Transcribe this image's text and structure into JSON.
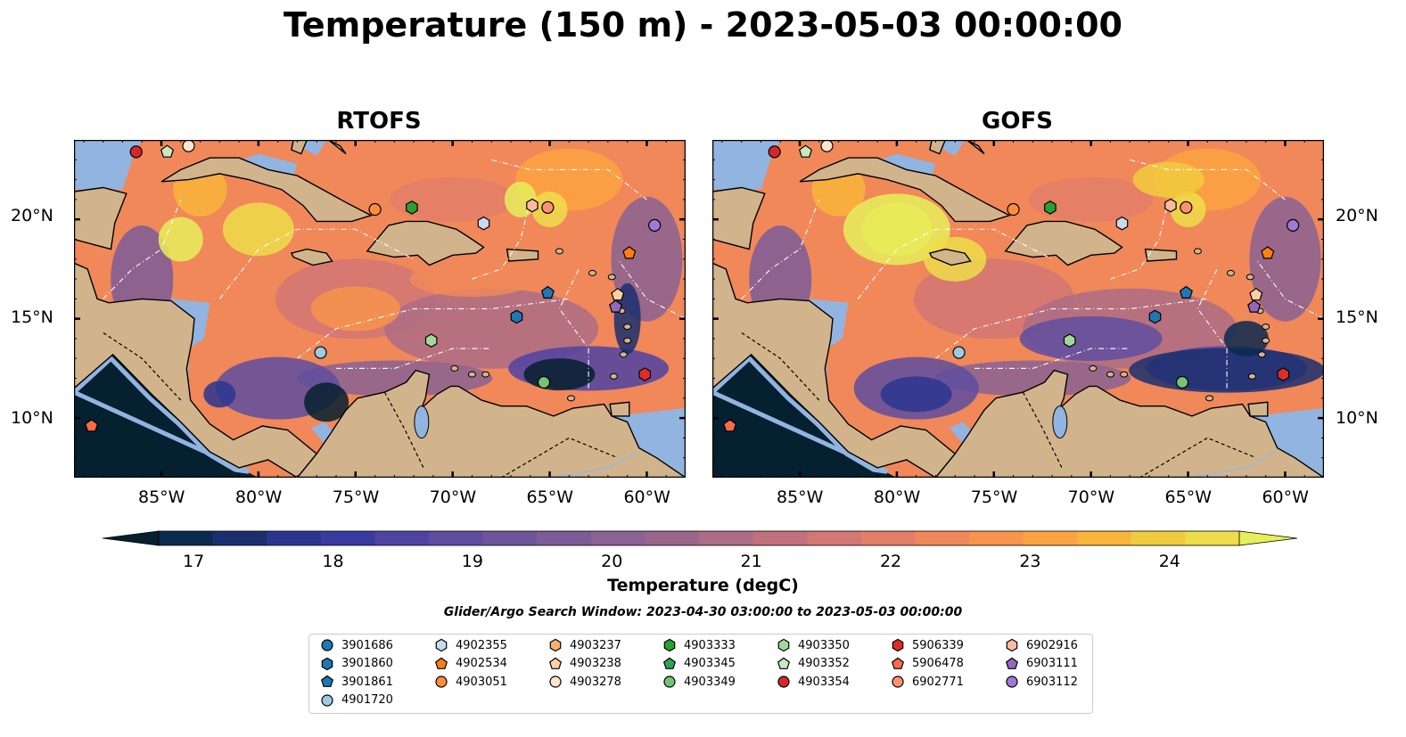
{
  "title": "Temperature (150 m) - 2023-05-03 00:00:00",
  "panels": [
    {
      "title": "RTOFS",
      "id": "rtofs"
    },
    {
      "title": "GOFS",
      "id": "gofs"
    }
  ],
  "lon_ticks": [
    "85°W",
    "80°W",
    "75°W",
    "70°W",
    "65°W",
    "60°W"
  ],
  "lat_ticks": [
    "20°N",
    "15°N",
    "10°N"
  ],
  "map_extent": {
    "lon": [
      -89.5,
      -58
    ],
    "lat": [
      7,
      24
    ]
  },
  "colorbar": {
    "label": "Temperature (degC)",
    "ticks": [
      "17",
      "18",
      "19",
      "20",
      "21",
      "22",
      "23",
      "24"
    ],
    "range": [
      16.75,
      24.5
    ],
    "extend": "both",
    "colors": [
      "#05202e",
      "#0b2a4f",
      "#1b2f6e",
      "#2b3590",
      "#3b3aa0",
      "#4f43a2",
      "#5f4d9f",
      "#6e559b",
      "#7c5c98",
      "#8a6293",
      "#9a668c",
      "#ad6c85",
      "#c0717d",
      "#d27774",
      "#e37e69",
      "#f0885a",
      "#f8944b",
      "#fba340",
      "#f9b53a",
      "#f1cb3e",
      "#eedd4a",
      "#e6ef5a"
    ]
  },
  "search_window": "Glider/Argo Search Window: 2023-04-30 03:00:00 to 2023-05-03 00:00:00",
  "colors": {
    "land": "#d2b48c",
    "shelf": "#92b4e0",
    "deep_pacific": "#05202e"
  },
  "legend": [
    {
      "id": "3901686",
      "color": "#1f77b4",
      "shape": "circle"
    },
    {
      "id": "3901860",
      "color": "#1f77b4",
      "shape": "hexagon"
    },
    {
      "id": "3901861",
      "color": "#1f77b4",
      "shape": "pentagon"
    },
    {
      "id": "4901720",
      "color": "#9ecae1",
      "shape": "circle"
    },
    {
      "id": "4902355",
      "color": "#c6dbef",
      "shape": "hexagon"
    },
    {
      "id": "4902534",
      "color": "#ff7f0e",
      "shape": "pentagon"
    },
    {
      "id": "4903051",
      "color": "#fd8d3c",
      "shape": "circle"
    },
    {
      "id": "4903237",
      "color": "#fdae6b",
      "shape": "hexagon"
    },
    {
      "id": "4903238",
      "color": "#fdd0a2",
      "shape": "pentagon"
    },
    {
      "id": "4903278",
      "color": "#fee6ce",
      "shape": "circle"
    },
    {
      "id": "4903333",
      "color": "#2ca02c",
      "shape": "hexagon"
    },
    {
      "id": "4903345",
      "color": "#31a354",
      "shape": "pentagon"
    },
    {
      "id": "4903349",
      "color": "#74c476",
      "shape": "circle"
    },
    {
      "id": "4903350",
      "color": "#a1d99b",
      "shape": "hexagon"
    },
    {
      "id": "4903352",
      "color": "#c7e9c0",
      "shape": "pentagon"
    },
    {
      "id": "4903354",
      "color": "#d62728",
      "shape": "circle"
    },
    {
      "id": "5906339",
      "color": "#de2d26",
      "shape": "hexagon"
    },
    {
      "id": "5906478",
      "color": "#fb6a4a",
      "shape": "pentagon"
    },
    {
      "id": "6902771",
      "color": "#fc9272",
      "shape": "circle"
    },
    {
      "id": "6902916",
      "color": "#fcbba1",
      "shape": "hexagon"
    },
    {
      "id": "6903111",
      "color": "#9467bd",
      "shape": "pentagon"
    },
    {
      "id": "6903112",
      "color": "#9e7ad6",
      "shape": "circle"
    }
  ],
  "floats": [
    {
      "id": "5906478",
      "lon": -88.6,
      "lat": 9.6,
      "color": "#fb6a4a",
      "shape": "pentagon"
    },
    {
      "id": "4903354",
      "lon": -86.3,
      "lat": 23.4,
      "color": "#d62728",
      "shape": "circle"
    },
    {
      "id": "4903352",
      "lon": -84.7,
      "lat": 23.4,
      "color": "#c7e9c0",
      "shape": "pentagon"
    },
    {
      "id": "4903278",
      "lon": -83.6,
      "lat": 23.7,
      "color": "#fee6ce",
      "shape": "circle"
    },
    {
      "id": "4901720",
      "lon": -76.8,
      "lat": 13.3,
      "color": "#9ecae1",
      "shape": "circle"
    },
    {
      "id": "4903051",
      "lon": -74.0,
      "lat": 20.5,
      "color": "#fd8d3c",
      "shape": "circle"
    },
    {
      "id": "4903333",
      "lon": -72.1,
      "lat": 20.6,
      "color": "#2ca02c",
      "shape": "hexagon"
    },
    {
      "id": "4903350",
      "lon": -71.1,
      "lat": 13.9,
      "color": "#a1d99b",
      "shape": "hexagon"
    },
    {
      "id": "4902355",
      "lon": -68.4,
      "lat": 19.8,
      "color": "#c6dbef",
      "shape": "hexagon"
    },
    {
      "id": "3901860",
      "lon": -66.7,
      "lat": 15.1,
      "color": "#1f77b4",
      "shape": "hexagon"
    },
    {
      "id": "6902916",
      "lon": -65.9,
      "lat": 20.7,
      "color": "#fcbba1",
      "shape": "hexagon"
    },
    {
      "id": "6902771",
      "lon": -65.1,
      "lat": 20.6,
      "color": "#fc9272",
      "shape": "circle"
    },
    {
      "id": "3901861",
      "lon": -65.1,
      "lat": 16.3,
      "color": "#1f77b4",
      "shape": "pentagon"
    },
    {
      "id": "4903349",
      "lon": -65.3,
      "lat": 11.8,
      "color": "#74c476",
      "shape": "circle"
    },
    {
      "id": "4903238",
      "lon": -61.5,
      "lat": 16.2,
      "color": "#fdd0a2",
      "shape": "pentagon"
    },
    {
      "id": "6903111",
      "lon": -61.6,
      "lat": 15.6,
      "color": "#9467bd",
      "shape": "pentagon"
    },
    {
      "id": "4902534",
      "lon": -60.9,
      "lat": 18.3,
      "color": "#ff7f0e",
      "shape": "pentagon"
    },
    {
      "id": "6903112",
      "lon": -59.6,
      "lat": 19.7,
      "color": "#9e7ad6",
      "shape": "circle"
    },
    {
      "id": "5906339",
      "lon": -60.1,
      "lat": 12.2,
      "color": "#de2d26",
      "shape": "hexagon"
    }
  ]
}
